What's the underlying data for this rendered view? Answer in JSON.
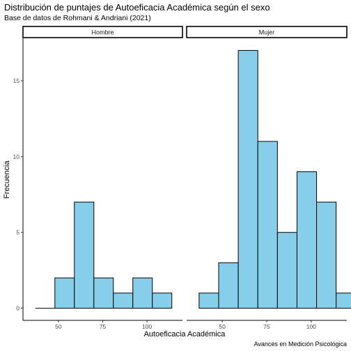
{
  "chart_data": {
    "type": "bar",
    "title": "Distribución de puntajes de Autoeficacia Académica según el sexo",
    "subtitle": "Base de datos de Rohmani & Andriani (2021)",
    "xlabel": "Autoeficacia Académica",
    "ylabel": "Frecuencia",
    "caption": "Avances en Medición Psicológica",
    "ylim": [
      -0.8,
      17.8
    ],
    "xlim": [
      30,
      120
    ],
    "y_ticks": [
      0,
      5,
      10,
      15
    ],
    "x_ticks": [
      50,
      75,
      100
    ],
    "grid": false,
    "bin_width": 11,
    "fill_color": "#87ceeb",
    "stroke_color": "#000000",
    "panels": [
      {
        "name": "Hombre",
        "bins": [
          {
            "x": 42.5,
            "count": 0
          },
          {
            "x": 53.5,
            "count": 2
          },
          {
            "x": 64.5,
            "count": 7
          },
          {
            "x": 75.5,
            "count": 2
          },
          {
            "x": 86.5,
            "count": 1
          },
          {
            "x": 97.5,
            "count": 2
          },
          {
            "x": 108.5,
            "count": 1
          }
        ]
      },
      {
        "name": "Mujer",
        "bins": [
          {
            "x": 42.5,
            "count": 1
          },
          {
            "x": 53.5,
            "count": 3
          },
          {
            "x": 64.5,
            "count": 17
          },
          {
            "x": 75.5,
            "count": 11
          },
          {
            "x": 86.5,
            "count": 5
          },
          {
            "x": 97.5,
            "count": 9
          },
          {
            "x": 108.5,
            "count": 7
          },
          {
            "x": 119.5,
            "count": 1
          }
        ]
      }
    ]
  }
}
